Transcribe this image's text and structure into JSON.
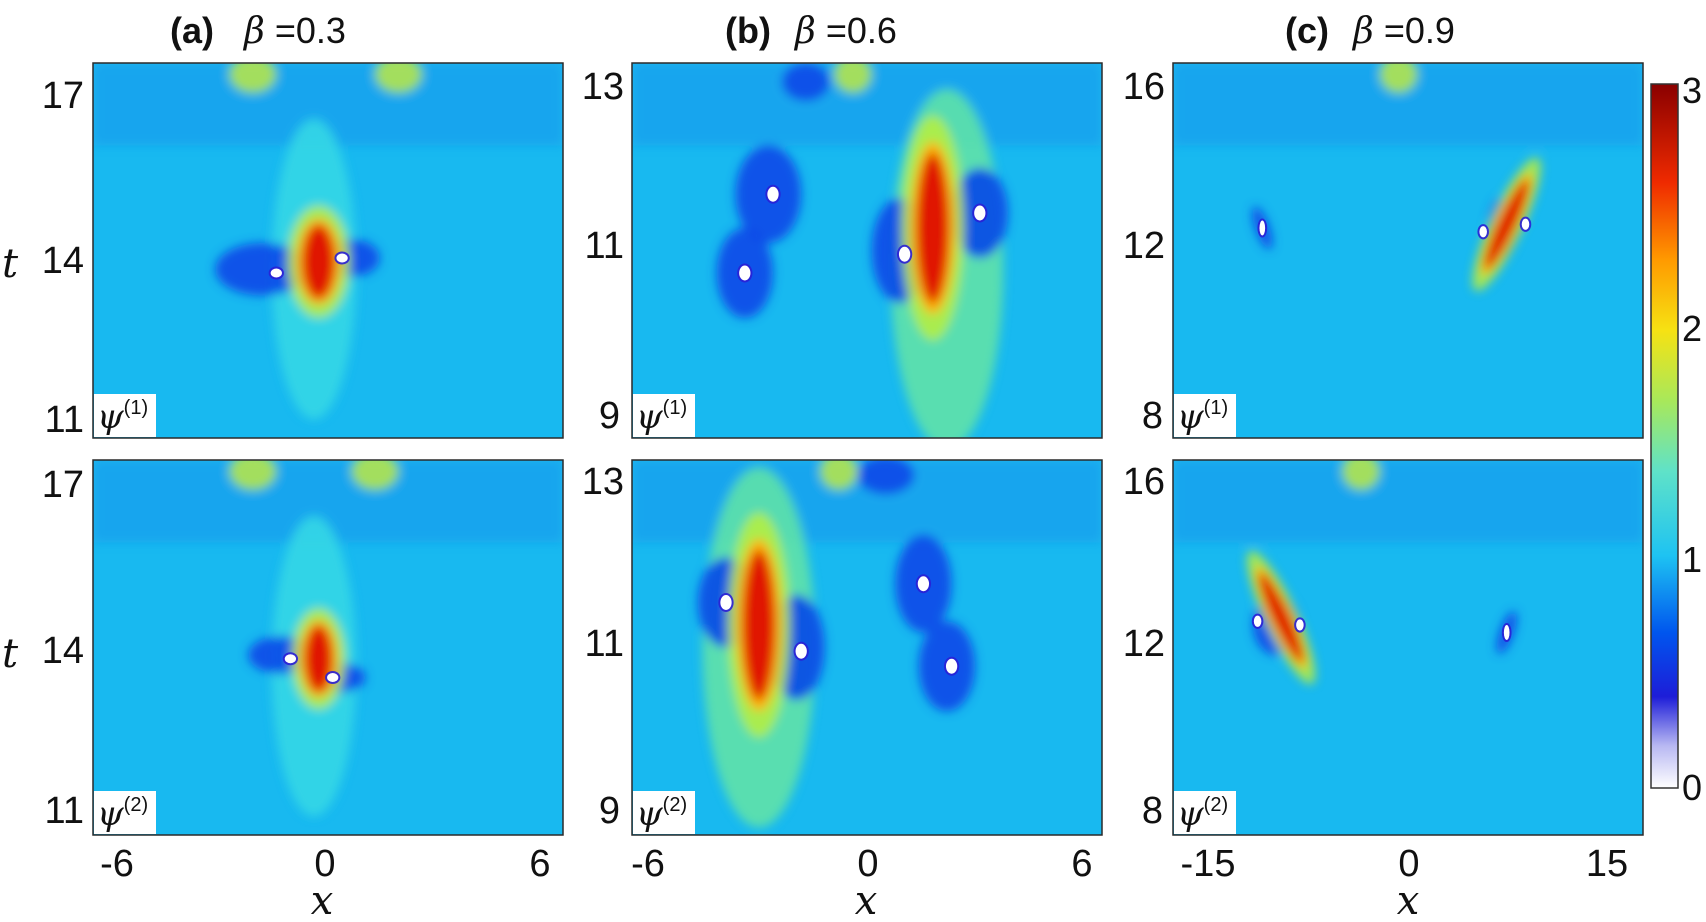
{
  "chart_data": {
    "type": "heatmap",
    "colorbar": {
      "ticks": [
        "0",
        "1",
        "2",
        "3"
      ],
      "range": [
        0,
        3
      ],
      "colormap": "jet"
    },
    "columns": [
      {
        "label": "(a)",
        "beta_symbol": "β",
        "beta_value": "=0.3",
        "xticks": [
          "-6",
          "0",
          "6"
        ],
        "xlim": [
          -6.4,
          6.4
        ],
        "yticks_top": [
          "17",
          "14",
          "11"
        ],
        "yticks_bottom": [
          "17",
          "14",
          "11"
        ],
        "ylim": [
          11,
          17
        ]
      },
      {
        "label": "(b)",
        "beta_symbol": "β",
        "beta_value": "=0.6",
        "xticks": [
          "-6",
          "0",
          "6"
        ],
        "xlim": [
          -6.4,
          6.4
        ],
        "yticks_top": [
          "13",
          "11",
          "9"
        ],
        "yticks_bottom": [
          "13",
          "11",
          "9"
        ],
        "ylim": [
          9,
          13
        ]
      },
      {
        "label": "(c)",
        "beta_symbol": "β",
        "beta_value": "=0.9",
        "xticks": [
          "-15",
          "0",
          "15"
        ],
        "xlim": [
          -16.5,
          16.5
        ],
        "yticks_top": [
          "16",
          "12",
          "8"
        ],
        "yticks_bottom": [
          "16",
          "12",
          "8"
        ],
        "ylim": [
          8,
          16
        ]
      }
    ],
    "rows": [
      {
        "component_symbol": "ψ",
        "component_index": "(1)",
        "ylabel": "t"
      },
      {
        "component_symbol": "ψ",
        "component_index": "(2)",
        "ylabel": "t"
      }
    ],
    "xlabel": "x",
    "peak_value": 3,
    "background_value": 1
  }
}
